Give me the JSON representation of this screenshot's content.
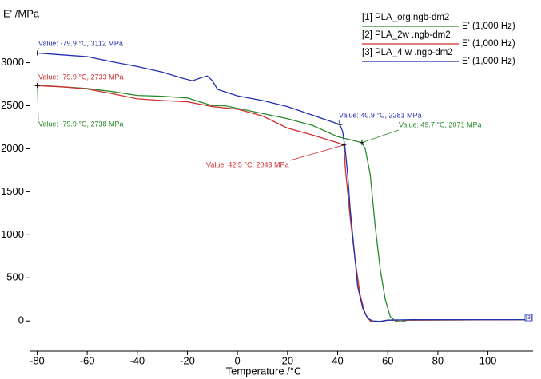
{
  "chart_data": {
    "type": "line",
    "ylabel": "E' /MPa",
    "xlabel": "Temperature /°C",
    "xlim": [
      -83,
      118
    ],
    "ylim": [
      -350,
      3450
    ],
    "xticks": [
      -80,
      -60,
      -40,
      -20,
      0,
      20,
      40,
      60,
      80,
      100
    ],
    "yticks": [
      0,
      500,
      1000,
      1500,
      2000,
      2500,
      3000
    ],
    "legend": "top-right",
    "series": [
      {
        "name": "[1] PLA_org.ngb-dm2",
        "subname": "E' (1,000 Hz)",
        "color": "#2a8a2a",
        "x": [
          -80,
          -70,
          -60,
          -50,
          -40,
          -30,
          -20,
          -10,
          -5,
          0,
          10,
          20,
          30,
          40,
          49.7,
          51,
          53,
          55,
          57,
          59,
          61,
          63,
          65,
          68,
          117
        ],
        "values": [
          2738,
          2720,
          2700,
          2665,
          2620,
          2610,
          2590,
          2500,
          2500,
          2470,
          2410,
          2350,
          2270,
          2140,
          2071,
          2000,
          1700,
          1100,
          600,
          250,
          50,
          0,
          -10,
          10,
          15
        ]
      },
      {
        "name": "[2] PLA_2w .ngb-dm2",
        "subname": "E' (1,000 Hz)",
        "color": "#d03030",
        "x": [
          -80,
          -70,
          -60,
          -50,
          -40,
          -30,
          -20,
          -10,
          0,
          10,
          20,
          30,
          40,
          42.5,
          43,
          45,
          47,
          49,
          51,
          53,
          56,
          60,
          117
        ],
        "values": [
          2733,
          2720,
          2695,
          2640,
          2580,
          2560,
          2545,
          2490,
          2460,
          2380,
          2240,
          2160,
          2070,
          2043,
          1800,
          1200,
          700,
          300,
          80,
          0,
          -10,
          10,
          15
        ]
      },
      {
        "name": "[3] PLA_4 w .ngb-dm2",
        "subname": "E' (1,000 Hz)",
        "color": "#2030b0",
        "x": [
          -80,
          -70,
          -60,
          -50,
          -40,
          -30,
          -22,
          -18,
          -14,
          -12,
          -10,
          -8,
          0,
          10,
          20,
          30,
          38,
          40.9,
          42,
          43,
          44,
          45,
          46,
          47,
          48,
          50,
          52,
          54,
          57,
          60,
          70,
          117
        ],
        "values": [
          3112,
          3090,
          3070,
          3010,
          2955,
          2890,
          2820,
          2790,
          2830,
          2845,
          2790,
          2690,
          2615,
          2560,
          2490,
          2390,
          2310,
          2281,
          2200,
          2000,
          1700,
          1300,
          1000,
          700,
          400,
          150,
          30,
          0,
          -5,
          10,
          15,
          15
        ]
      }
    ],
    "annotations": [
      {
        "text": "Value: -79.9 °C, 3112 MPa",
        "x": -79.9,
        "y": 3112,
        "color": "#2030b0"
      },
      {
        "text": "Value: -79.9 °C, 2733 MPa",
        "x": -79.9,
        "y": 2733,
        "color": "#d03030"
      },
      {
        "text": "Value: -79.9 °C, 2738 MPa",
        "x": -79.9,
        "y": 2738,
        "color": "#2a8a2a"
      },
      {
        "text": "Value: 40.9 °C, 2281 MPa",
        "x": 40.9,
        "y": 2281,
        "color": "#2030b0"
      },
      {
        "text": "Value: 42.5 °C, 2043 MPa",
        "x": 42.5,
        "y": 2043,
        "color": "#d03030"
      },
      {
        "text": "Value: 49.7 °C, 2071 MPa",
        "x": 49.7,
        "y": 2071,
        "color": "#2a8a2a"
      }
    ],
    "end_label": "[3]"
  }
}
